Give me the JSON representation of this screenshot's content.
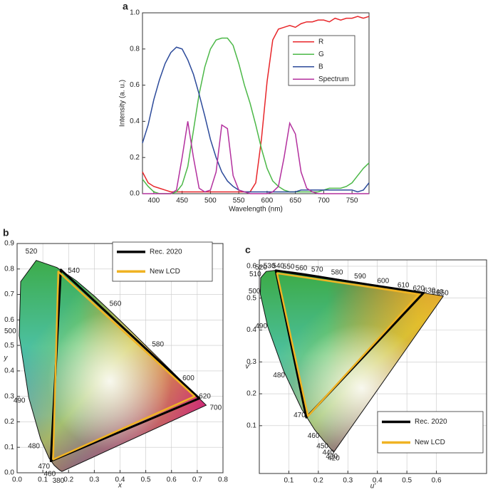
{
  "chart_data": [
    {
      "type": "line",
      "panel": "a",
      "x_label": "Wavelength (nm)",
      "y_label": "Intensity (a. u.)",
      "x": [
        380,
        390,
        400,
        410,
        420,
        430,
        440,
        450,
        460,
        470,
        480,
        490,
        500,
        510,
        520,
        530,
        540,
        550,
        560,
        570,
        580,
        590,
        600,
        610,
        620,
        630,
        640,
        650,
        660,
        670,
        680,
        690,
        700,
        710,
        720,
        730,
        740,
        750,
        760,
        770,
        780
      ],
      "series": [
        {
          "name": "R",
          "color": "#e8262a",
          "values": [
            0.12,
            0.06,
            0.04,
            0.03,
            0.02,
            0.01,
            0.01,
            0.01,
            0.01,
            0.01,
            0.01,
            0.01,
            0.01,
            0.01,
            0.01,
            0.01,
            0.01,
            0.01,
            0.01,
            0.01,
            0.06,
            0.3,
            0.62,
            0.85,
            0.91,
            0.92,
            0.93,
            0.92,
            0.94,
            0.95,
            0.95,
            0.96,
            0.96,
            0.95,
            0.97,
            0.96,
            0.97,
            0.97,
            0.98,
            0.97,
            0.98
          ]
        },
        {
          "name": "G",
          "color": "#4cb848",
          "values": [
            0.08,
            0.04,
            0.01,
            0,
            0,
            0,
            0.01,
            0.05,
            0.15,
            0.35,
            0.55,
            0.7,
            0.8,
            0.85,
            0.86,
            0.86,
            0.82,
            0.72,
            0.6,
            0.5,
            0.38,
            0.25,
            0.14,
            0.07,
            0.04,
            0.02,
            0.01,
            0.01,
            0.01,
            0.01,
            0.01,
            0.01,
            0.02,
            0.03,
            0.03,
            0.03,
            0.04,
            0.06,
            0.1,
            0.14,
            0.17
          ]
        },
        {
          "name": "B",
          "color": "#2c4a9a",
          "values": [
            0.28,
            0.38,
            0.52,
            0.63,
            0.72,
            0.78,
            0.81,
            0.8,
            0.74,
            0.66,
            0.55,
            0.43,
            0.3,
            0.2,
            0.12,
            0.07,
            0.04,
            0.02,
            0.01,
            0.01,
            0.01,
            0.01,
            0.01,
            0.01,
            0.01,
            0.01,
            0.01,
            0.01,
            0.02,
            0.02,
            0.02,
            0.02,
            0.02,
            0.02,
            0.02,
            0.02,
            0.02,
            0.02,
            0.01,
            0.02,
            0.06
          ]
        },
        {
          "name": "Spectrum",
          "color": "#b3309e",
          "values": [
            0,
            0,
            0,
            0,
            0,
            0,
            0.02,
            0.2,
            0.4,
            0.2,
            0.03,
            0.01,
            0.02,
            0.12,
            0.38,
            0.36,
            0.1,
            0.02,
            0.01,
            0,
            0,
            0,
            0,
            0.01,
            0.04,
            0.2,
            0.39,
            0.33,
            0.12,
            0.03,
            0.01,
            0,
            0,
            0,
            0,
            0,
            0,
            0,
            0,
            0,
            0
          ]
        }
      ],
      "xlim": [
        380,
        780
      ],
      "xticks": [
        400,
        450,
        500,
        550,
        600,
        650,
        700,
        750
      ],
      "ylim": [
        0,
        1
      ],
      "yticks": [
        {
          "value": 0,
          "label": "0.0"
        },
        0.2,
        0.4,
        0.6,
        0.8,
        {
          "value": 1,
          "label": "1.0"
        }
      ],
      "grid": false,
      "legend": "upper right"
    },
    {
      "type": "chromaticity",
      "panel": "b",
      "x_label": "x",
      "y_label": "y",
      "locus": {
        "x": [
          0.1741,
          0.1644,
          0.1566,
          0.144,
          0.1241,
          0.0913,
          0.0454,
          0.0082,
          0.0139,
          0.0743,
          0.1547,
          0.2296,
          0.3016,
          0.3731,
          0.4441,
          0.5125,
          0.5752,
          0.627,
          0.6658,
          0.6915,
          0.719,
          0.7347
        ],
        "values": [
          0.005,
          0.0109,
          0.0177,
          0.0297,
          0.0578,
          0.1327,
          0.295,
          0.5384,
          0.7502,
          0.8338,
          0.8059,
          0.7543,
          0.6923,
          0.6245,
          0.5547,
          0.4866,
          0.4242,
          0.3725,
          0.334,
          0.3083,
          0.2809,
          0.2653
        ],
        "labels": [
          380,
          null,
          null,
          460,
          470,
          480,
          490,
          500,
          null,
          520,
          null,
          540,
          null,
          560,
          null,
          580,
          null,
          600,
          null,
          620,
          null,
          700
        ]
      },
      "series": [
        {
          "name": "Rec. 2020",
          "color": "#000000",
          "x": [
            0.708,
            0.17,
            0.131
          ],
          "values": [
            0.292,
            0.797,
            0.046
          ]
        },
        {
          "name": "New LCD",
          "color": "#f0b323",
          "x": [
            0.69,
            0.16,
            0.14
          ],
          "values": [
            0.3,
            0.79,
            0.052
          ]
        }
      ],
      "xlim": [
        0,
        0.8
      ],
      "xticks": [
        {
          "value": 0,
          "label": "0.0"
        },
        0.1,
        0.2,
        0.3,
        0.4,
        0.5,
        0.6,
        0.7,
        0.8
      ],
      "ylim": [
        0,
        0.9
      ],
      "yticks": [
        {
          "value": 0,
          "label": "0.0"
        },
        0.1,
        0.2,
        0.3,
        0.4,
        0.5,
        0.6,
        0.7,
        0.8,
        0.9
      ],
      "grid": true,
      "legend": "upper right"
    },
    {
      "type": "chromaticity",
      "panel": "c",
      "x_label": "u'",
      "y_label": "v'",
      "locus": {
        "x": [
          0.2522,
          0.2461,
          0.2347,
          0.2161,
          0.1877,
          0.1441,
          0.0828,
          0.0282,
          0.0035,
          0.0046,
          0.0231,
          0.0501,
          0.0792,
          0.1127,
          0.1531,
          0.2026,
          0.2623,
          0.3315,
          0.4035,
          0.4692,
          0.5203,
          0.5565,
          0.583,
          0.6005,
          0.6234
        ],
        "values": [
          0.0169,
          0.0226,
          0.035,
          0.0549,
          0.0871,
          0.151,
          0.2708,
          0.4117,
          0.5131,
          0.5638,
          0.5837,
          0.5868,
          0.5856,
          0.5821,
          0.5766,
          0.5694,
          0.5604,
          0.5501,
          0.5393,
          0.5296,
          0.5219,
          0.5165,
          0.5125,
          0.5099,
          0.5065
        ],
        "labels": [
          420,
          430,
          440,
          450,
          460,
          470,
          480,
          490,
          500,
          510,
          520,
          530,
          540,
          550,
          560,
          570,
          580,
          590,
          600,
          610,
          620,
          630,
          640,
          650,
          null
        ]
      },
      "series": [
        {
          "name": "Rec. 2020",
          "color": "#000000",
          "x": [
            0.5566,
            0.0556,
            0.1593
          ],
          "values": [
            0.5165,
            0.5868,
            0.1258
          ]
        },
        {
          "name": "New LCD",
          "color": "#f0b323",
          "x": [
            0.54,
            0.06,
            0.165
          ],
          "values": [
            0.512,
            0.578,
            0.13
          ]
        }
      ],
      "xlim": [
        0,
        0.77
      ],
      "xticks": [
        0.1,
        0.2,
        0.3,
        0.4,
        0.5,
        0.6
      ],
      "ylim": [
        -0.05,
        0.62
      ],
      "yticks": [
        0.1,
        0.2,
        0.3,
        0.4,
        0.5,
        0.6
      ],
      "grid": true,
      "legend": "lower right"
    }
  ]
}
